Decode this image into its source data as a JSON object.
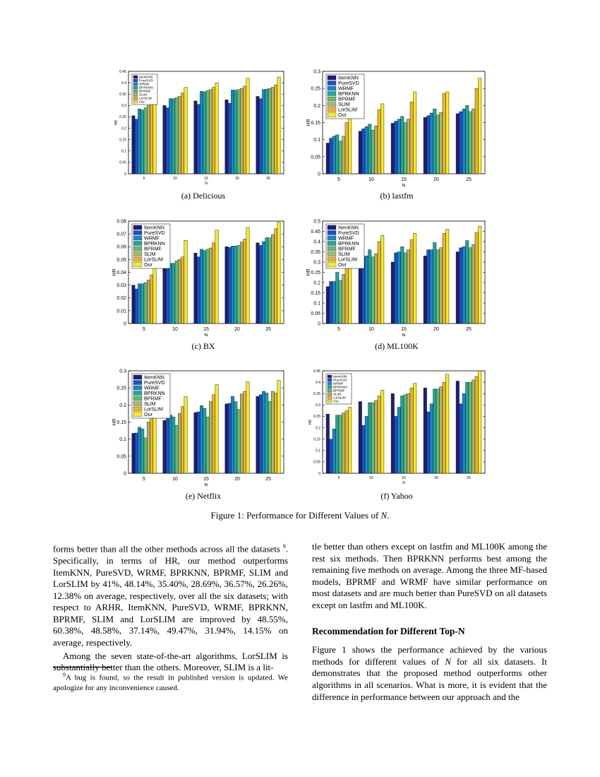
{
  "series_names": [
    "ItemKNN",
    "PureSVD",
    "WRMF",
    "BPRKNN",
    "BPRMF",
    "SLIM",
    "LorSLIM",
    "Our"
  ],
  "series_colors": [
    "#1e1e78",
    "#1f51c3",
    "#1a87c9",
    "#1ea8a0",
    "#6db86e",
    "#a9b86d",
    "#f2b22e",
    "#f3ee22"
  ],
  "chart_data": [
    {
      "type": "bar",
      "caption": "(a) Delicious",
      "xlabel": "N",
      "ylabel": "HR",
      "categories": [
        "5",
        "10",
        "15",
        "20",
        "25"
      ],
      "ylim": [
        0,
        0.45
      ],
      "yticks": [
        "0",
        "0.05",
        "0.1",
        "0.15",
        "0.2",
        "0.25",
        "0.3",
        "0.35",
        "0.4",
        "0.45"
      ],
      "series": [
        {
          "name": "ItemKNN",
          "values": [
            0.255,
            0.3,
            0.32,
            0.325,
            0.34
          ]
        },
        {
          "name": "PureSVD",
          "values": [
            0.24,
            0.29,
            0.305,
            0.31,
            0.33
          ]
        },
        {
          "name": "WRMF",
          "values": [
            0.285,
            0.33,
            0.362,
            0.368,
            0.37
          ]
        },
        {
          "name": "BPRKNN",
          "values": [
            0.28,
            0.33,
            0.36,
            0.367,
            0.372
          ]
        },
        {
          "name": "BPRMF",
          "values": [
            0.29,
            0.335,
            0.365,
            0.37,
            0.375
          ]
        },
        {
          "name": "SLIM",
          "values": [
            0.3,
            0.34,
            0.37,
            0.375,
            0.38
          ]
        },
        {
          "name": "LorSLIM",
          "values": [
            0.31,
            0.355,
            0.38,
            0.385,
            0.39
          ]
        },
        {
          "name": "Our",
          "values": [
            0.32,
            0.38,
            0.4,
            0.42,
            0.425
          ]
        }
      ]
    },
    {
      "type": "bar",
      "caption": "(b) lastfm",
      "xlabel": "N",
      "ylabel": "HR",
      "categories": [
        "5",
        "10",
        "15",
        "20",
        "25"
      ],
      "ylim": [
        0,
        0.3
      ],
      "yticks": [
        "0",
        "0.05",
        "0.1",
        "0.15",
        "0.2",
        "0.25",
        "0.3"
      ],
      "series": [
        {
          "name": "ItemKNN",
          "values": [
            0.09,
            0.125,
            0.148,
            0.165,
            0.176
          ]
        },
        {
          "name": "PureSVD",
          "values": [
            0.104,
            0.132,
            0.154,
            0.17,
            0.182
          ]
        },
        {
          "name": "WRMF",
          "values": [
            0.11,
            0.138,
            0.16,
            0.178,
            0.19
          ]
        },
        {
          "name": "BPRKNN",
          "values": [
            0.114,
            0.145,
            0.168,
            0.19,
            0.2
          ]
        },
        {
          "name": "BPRMF",
          "values": [
            0.096,
            0.128,
            0.15,
            0.172,
            0.182
          ]
        },
        {
          "name": "SLIM",
          "values": [
            0.11,
            0.14,
            0.16,
            0.18,
            0.19
          ]
        },
        {
          "name": "LorSLIM",
          "values": [
            0.15,
            0.188,
            0.21,
            0.235,
            0.25
          ]
        },
        {
          "name": "Our",
          "values": [
            0.17,
            0.205,
            0.24,
            0.24,
            0.28
          ]
        }
      ]
    },
    {
      "type": "bar",
      "caption": "(c) BX",
      "xlabel": "N",
      "ylabel": "HR",
      "categories": [
        "5",
        "10",
        "15",
        "20",
        "25"
      ],
      "ylim": [
        0,
        0.08
      ],
      "yticks": [
        "0",
        "0.01",
        "0.02",
        "0.03",
        "0.04",
        "0.05",
        "0.06",
        "0.07",
        "0.08"
      ],
      "series": [
        {
          "name": "ItemKNN",
          "values": [
            0.03,
            0.045,
            0.055,
            0.06,
            0.063
          ]
        },
        {
          "name": "PureSVD",
          "values": [
            0.027,
            0.044,
            0.052,
            0.0595,
            0.061
          ]
        },
        {
          "name": "WRMF",
          "values": [
            0.031,
            0.047,
            0.058,
            0.0605,
            0.064
          ]
        },
        {
          "name": "BPRKNN",
          "values": [
            0.031,
            0.047,
            0.057,
            0.0605,
            0.067
          ]
        },
        {
          "name": "BPRMF",
          "values": [
            0.032,
            0.049,
            0.058,
            0.061,
            0.067
          ]
        },
        {
          "name": "SLIM",
          "values": [
            0.034,
            0.05,
            0.059,
            0.0635,
            0.0695
          ]
        },
        {
          "name": "LorSLIM",
          "values": [
            0.038,
            0.052,
            0.063,
            0.066,
            0.074
          ]
        },
        {
          "name": "Our",
          "values": [
            0.046,
            0.065,
            0.073,
            0.075,
            0.079
          ]
        }
      ]
    },
    {
      "type": "bar",
      "caption": "(d) ML100K",
      "xlabel": "N",
      "ylabel": "HR",
      "categories": [
        "5",
        "10",
        "15",
        "20",
        "25"
      ],
      "ylim": [
        0,
        0.5
      ],
      "yticks": [
        "0",
        "0.05",
        "0.1",
        "0.15",
        "0.2",
        "0.25",
        "0.3",
        "0.35",
        "0.4",
        "0.45",
        "0.5"
      ],
      "series": [
        {
          "name": "ItemKNN",
          "values": [
            0.18,
            0.29,
            0.3,
            0.33,
            0.35
          ]
        },
        {
          "name": "PureSVD",
          "values": [
            0.205,
            0.325,
            0.345,
            0.36,
            0.37
          ]
        },
        {
          "name": "WRMF",
          "values": [
            0.205,
            0.33,
            0.35,
            0.36,
            0.375
          ]
        },
        {
          "name": "BPRKNN",
          "values": [
            0.25,
            0.36,
            0.375,
            0.395,
            0.405
          ]
        },
        {
          "name": "BPRMF",
          "values": [
            0.21,
            0.325,
            0.345,
            0.36,
            0.37
          ]
        },
        {
          "name": "SLIM",
          "values": [
            0.24,
            0.34,
            0.36,
            0.37,
            0.385
          ]
        },
        {
          "name": "LorSLIM",
          "values": [
            0.295,
            0.4,
            0.41,
            0.44,
            0.445
          ]
        },
        {
          "name": "Our",
          "values": [
            0.31,
            0.43,
            0.44,
            0.46,
            0.475
          ]
        }
      ]
    },
    {
      "type": "bar",
      "caption": "(e) Netflix",
      "xlabel": "N",
      "ylabel": "HR",
      "categories": [
        "5",
        "10",
        "15",
        "20",
        "25"
      ],
      "ylim": [
        0,
        0.3
      ],
      "yticks": [
        "0",
        "0.05",
        "0.1",
        "0.15",
        "0.2",
        "0.25",
        "0.3"
      ],
      "series": [
        {
          "name": "ItemKNN",
          "values": [
            0.117,
            0.155,
            0.178,
            0.203,
            0.225
          ]
        },
        {
          "name": "PureSVD",
          "values": [
            0.118,
            0.16,
            0.18,
            0.205,
            0.23
          ]
        },
        {
          "name": "WRMF",
          "values": [
            0.135,
            0.17,
            0.198,
            0.225,
            0.24
          ]
        },
        {
          "name": "BPRKNN",
          "values": [
            0.13,
            0.165,
            0.19,
            0.21,
            0.235
          ]
        },
        {
          "name": "BPRMF",
          "values": [
            0.104,
            0.14,
            0.165,
            0.187,
            0.21
          ]
        },
        {
          "name": "SLIM",
          "values": [
            0.15,
            0.175,
            0.21,
            0.232,
            0.24
          ]
        },
        {
          "name": "LorSLIM",
          "values": [
            0.165,
            0.195,
            0.23,
            0.24,
            0.235
          ]
        },
        {
          "name": "Our",
          "values": [
            0.175,
            0.225,
            0.26,
            0.268,
            0.272
          ]
        }
      ]
    },
    {
      "type": "bar",
      "caption": "(f) Yahoo",
      "xlabel": "N",
      "ylabel": "HR",
      "categories": [
        "5",
        "10",
        "15",
        "20",
        "25"
      ],
      "ylim": [
        0,
        0.45
      ],
      "yticks": [
        "0",
        "0.05",
        "0.1",
        "0.15",
        "0.2",
        "0.25",
        "0.3",
        "0.35",
        "0.4",
        "0.45"
      ],
      "series": [
        {
          "name": "ItemKNN",
          "values": [
            0.26,
            0.315,
            0.35,
            0.375,
            0.405
          ]
        },
        {
          "name": "PureSVD",
          "values": [
            0.15,
            0.21,
            0.25,
            0.27,
            0.305
          ]
        },
        {
          "name": "WRMF",
          "values": [
            0.195,
            0.25,
            0.29,
            0.305,
            0.35
          ]
        },
        {
          "name": "BPRKNN",
          "values": [
            0.255,
            0.31,
            0.34,
            0.37,
            0.4
          ]
        },
        {
          "name": "BPRMF",
          "values": [
            0.255,
            0.31,
            0.345,
            0.37,
            0.4
          ]
        },
        {
          "name": "SLIM",
          "values": [
            0.265,
            0.32,
            0.35,
            0.38,
            0.41
          ]
        },
        {
          "name": "LorSLIM",
          "values": [
            0.275,
            0.34,
            0.375,
            0.4,
            0.425
          ]
        },
        {
          "name": "Our",
          "values": [
            0.29,
            0.365,
            0.395,
            0.435,
            0.45
          ]
        }
      ]
    }
  ],
  "figure_caption": {
    "prefix": "Figure 1: Performance for Different Values of ",
    "var": "N",
    "suffix": "."
  },
  "left_col": {
    "p1_a": "forms better than all the other methods across all the datasets ",
    "p1_fnmark": "9",
    "p1_b": ". Specifically, in terms of HR, our method outperforms ItemKNN, PureSVD, WRMF, BPRKNN, BPRMF, SLIM and LorSLIM by 41%, 48.14%, 35.40%, 28.69%, 36.57%, 26.26%, 12.38% on average, respectively, over all the six datasets; with respect to ARHR, ItemKNN, PureSVD, WRMF, BPRKNN, BPRMF, SLIM and LorSLIM are improved by 48.55%, 60.38%, 48.58%, 37.14%, 49.47%, 31.94%, 14.15% on average, respectively.",
    "p2": "Among the seven state-of-the-art algorithms, LorSLIM is substantially better than the others. Moreover, SLIM is a lit-"
  },
  "footnote": {
    "mark": "9",
    "text": "A bug is found, so the result in published version is updated. We apologize for any inconvenience caused."
  },
  "right_col": {
    "p1": "tle better than others except on lastfm and ML100K among the rest six methods. Then BPRKNN performs best among the remaining five methods on average. Among the three MF-based models, BPRMF and WRMF have similar performance on most datasets and are much better than PureSVD on all datasets except on lastfm and ML100K.",
    "heading": "Recommendation for Different Top-N",
    "p2_a": "Figure 1 shows the performance achieved by the various methods for different values of ",
    "p2_var": "N",
    "p2_b": " for all six datasets. It demonstrates that the proposed method outperforms other algorithms in all scenarios. What is more, it is evident that the difference in performance between our approach and the"
  }
}
